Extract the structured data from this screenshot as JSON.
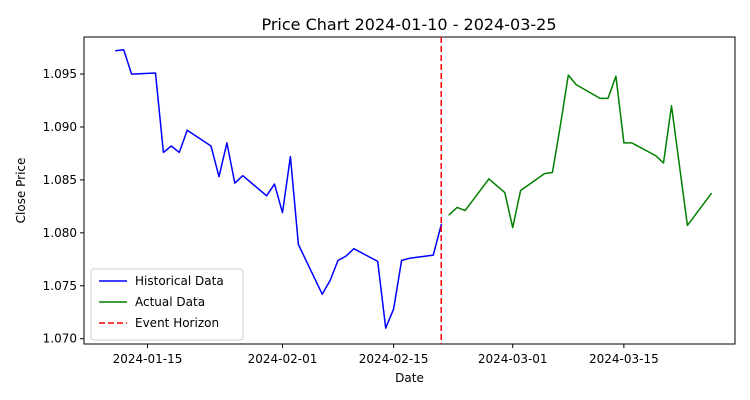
{
  "chart_data": {
    "type": "line",
    "title": "Price Chart 2024-01-10 - 2024-03-25",
    "xlabel": "Date",
    "ylabel": "Close Price",
    "xlim": [
      "2024-01-07",
      "2024-03-29"
    ],
    "ylim": [
      1.0695,
      1.0985
    ],
    "x_ticks": [
      {
        "value": "2024-01-15",
        "label": "2024-01-15"
      },
      {
        "value": "2024-02-01",
        "label": "2024-02-01"
      },
      {
        "value": "2024-02-15",
        "label": "2024-02-15"
      },
      {
        "value": "2024-03-01",
        "label": "2024-03-01"
      },
      {
        "value": "2024-03-15",
        "label": "2024-03-15"
      }
    ],
    "y_ticks": [
      {
        "value": 1.07,
        "label": "1.070"
      },
      {
        "value": 1.075,
        "label": "1.075"
      },
      {
        "value": 1.08,
        "label": "1.080"
      },
      {
        "value": 1.085,
        "label": "1.085"
      },
      {
        "value": 1.09,
        "label": "1.090"
      },
      {
        "value": 1.095,
        "label": "1.095"
      }
    ],
    "grid": false,
    "legend_position": "lower-left",
    "series": [
      {
        "name": "Historical Data",
        "color": "#0000ff",
        "style": "solid",
        "points": [
          {
            "x": "2024-01-11",
            "y": 1.0972
          },
          {
            "x": "2024-01-12",
            "y": 1.0973
          },
          {
            "x": "2024-01-13",
            "y": 1.095
          },
          {
            "x": "2024-01-16",
            "y": 1.0951
          },
          {
            "x": "2024-01-17",
            "y": 1.0876
          },
          {
            "x": "2024-01-18",
            "y": 1.0882
          },
          {
            "x": "2024-01-19",
            "y": 1.0876
          },
          {
            "x": "2024-01-20",
            "y": 1.0897
          },
          {
            "x": "2024-01-23",
            "y": 1.0882
          },
          {
            "x": "2024-01-24",
            "y": 1.0853
          },
          {
            "x": "2024-01-25",
            "y": 1.0885
          },
          {
            "x": "2024-01-26",
            "y": 1.0847
          },
          {
            "x": "2024-01-27",
            "y": 1.0854
          },
          {
            "x": "2024-01-30",
            "y": 1.0835
          },
          {
            "x": "2024-01-31",
            "y": 1.0846
          },
          {
            "x": "2024-02-01",
            "y": 1.0819
          },
          {
            "x": "2024-02-02",
            "y": 1.0872
          },
          {
            "x": "2024-02-03",
            "y": 1.0789
          },
          {
            "x": "2024-02-06",
            "y": 1.0742
          },
          {
            "x": "2024-02-07",
            "y": 1.0755
          },
          {
            "x": "2024-02-08",
            "y": 1.0774
          },
          {
            "x": "2024-02-09",
            "y": 1.0778
          },
          {
            "x": "2024-02-10",
            "y": 1.0785
          },
          {
            "x": "2024-02-13",
            "y": 1.0773
          },
          {
            "x": "2024-02-14",
            "y": 1.071
          },
          {
            "x": "2024-02-15",
            "y": 1.0728
          },
          {
            "x": "2024-02-16",
            "y": 1.0774
          },
          {
            "x": "2024-02-17",
            "y": 1.0776
          },
          {
            "x": "2024-02-20",
            "y": 1.0779
          },
          {
            "x": "2024-02-21",
            "y": 1.0808
          }
        ]
      },
      {
        "name": "Actual Data",
        "color": "#008000",
        "style": "solid",
        "points": [
          {
            "x": "2024-02-22",
            "y": 1.0817
          },
          {
            "x": "2024-02-23",
            "y": 1.0824
          },
          {
            "x": "2024-02-24",
            "y": 1.0821
          },
          {
            "x": "2024-02-27",
            "y": 1.0851
          },
          {
            "x": "2024-02-29",
            "y": 1.0838
          },
          {
            "x": "2024-03-01",
            "y": 1.0805
          },
          {
            "x": "2024-03-02",
            "y": 1.084
          },
          {
            "x": "2024-03-05",
            "y": 1.0856
          },
          {
            "x": "2024-03-06",
            "y": 1.0857
          },
          {
            "x": "2024-03-07",
            "y": 1.0901
          },
          {
            "x": "2024-03-08",
            "y": 1.0949
          },
          {
            "x": "2024-03-09",
            "y": 1.094
          },
          {
            "x": "2024-03-12",
            "y": 1.0927
          },
          {
            "x": "2024-03-13",
            "y": 1.0927
          },
          {
            "x": "2024-03-14",
            "y": 1.0948
          },
          {
            "x": "2024-03-15",
            "y": 1.0885
          },
          {
            "x": "2024-03-16",
            "y": 1.0885
          },
          {
            "x": "2024-03-19",
            "y": 1.0873
          },
          {
            "x": "2024-03-20",
            "y": 1.0866
          },
          {
            "x": "2024-03-21",
            "y": 1.092
          },
          {
            "x": "2024-03-23",
            "y": 1.0807
          },
          {
            "x": "2024-03-26",
            "y": 1.0837
          }
        ]
      },
      {
        "name": "Event Horizon",
        "color": "#ff0000",
        "style": "dashed",
        "vertical_line_at": "2024-02-21"
      }
    ]
  }
}
